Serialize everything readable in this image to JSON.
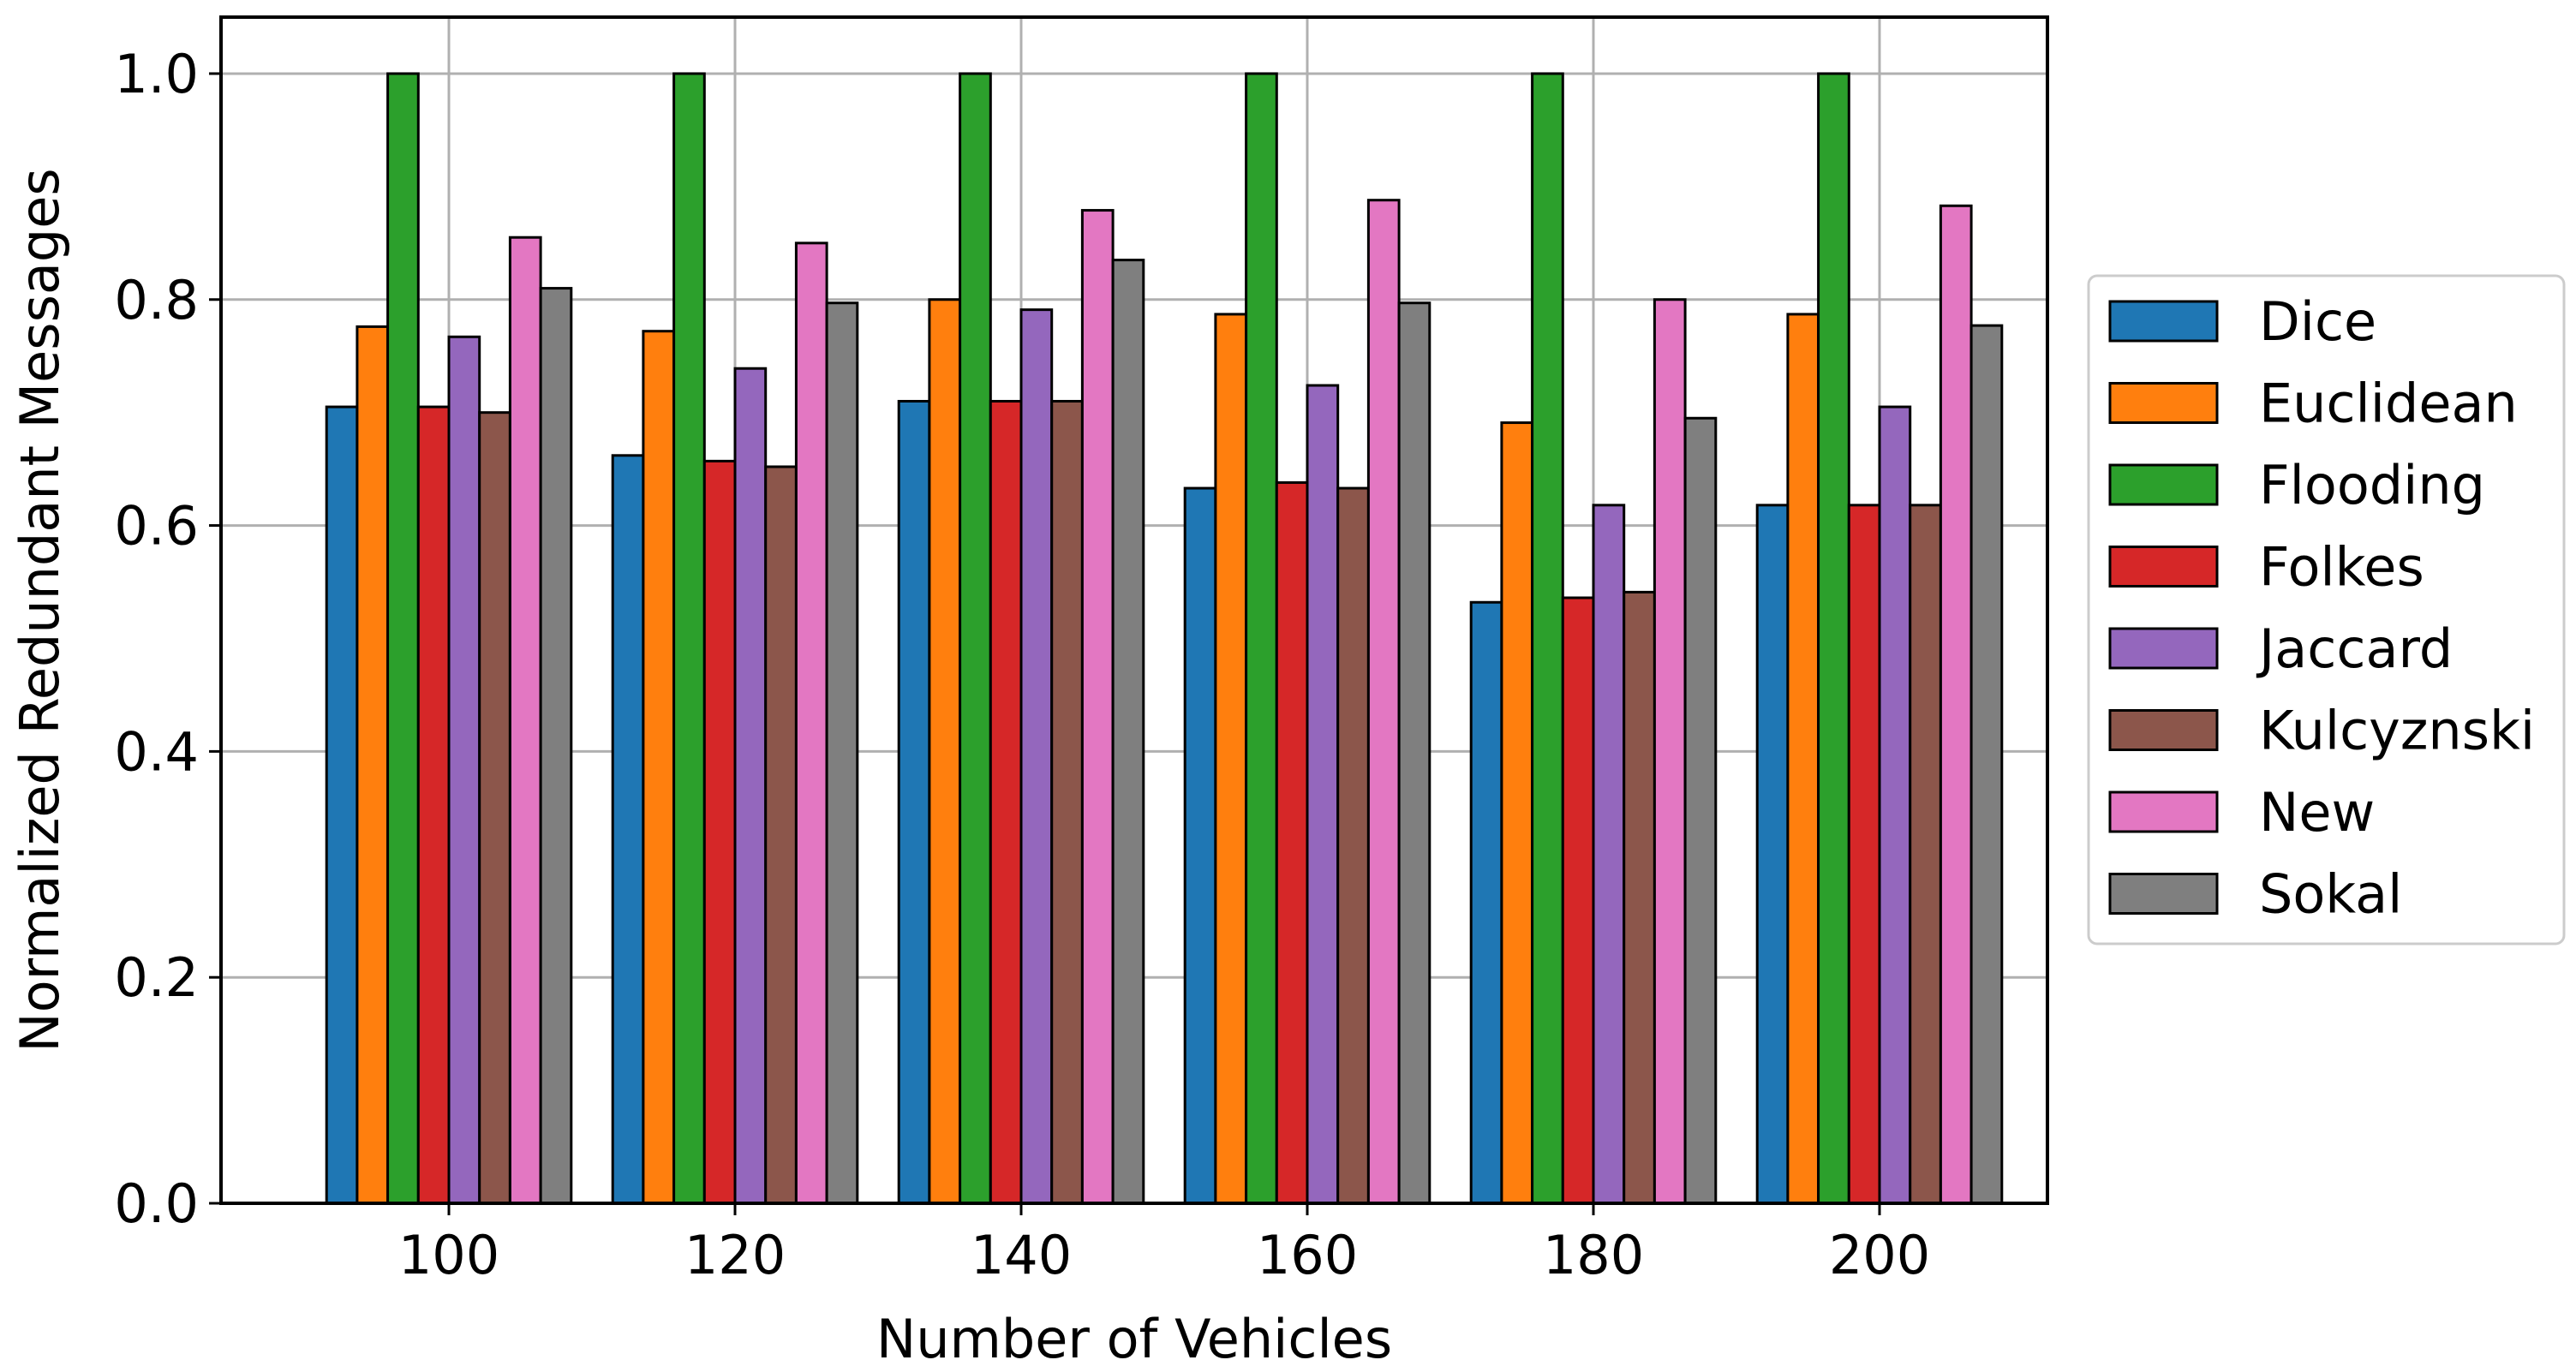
{
  "chart_data": {
    "type": "bar",
    "title": "",
    "xlabel": "Number of Vehicles",
    "ylabel": "Normalized Redundant Messages",
    "categories": [
      "100",
      "120",
      "140",
      "160",
      "180",
      "200"
    ],
    "ylim": [
      0.0,
      1.05
    ],
    "yticks": [
      "0.0",
      "0.2",
      "0.4",
      "0.6",
      "0.8",
      "1.0"
    ],
    "grid": true,
    "legend_position": "right",
    "series": [
      {
        "name": "Dice",
        "color": "#1f77b4",
        "values": [
          0.705,
          0.662,
          0.71,
          0.633,
          0.532,
          0.618
        ]
      },
      {
        "name": "Euclidean",
        "color": "#ff7f0e",
        "values": [
          0.776,
          0.772,
          0.8,
          0.787,
          0.691,
          0.787
        ]
      },
      {
        "name": "Flooding",
        "color": "#2ca02c",
        "values": [
          1.0,
          1.0,
          1.0,
          1.0,
          1.0,
          1.0
        ]
      },
      {
        "name": "Folkes",
        "color": "#d62728",
        "values": [
          0.705,
          0.657,
          0.71,
          0.638,
          0.536,
          0.618
        ]
      },
      {
        "name": "Jaccard",
        "color": "#9467bd",
        "values": [
          0.767,
          0.739,
          0.791,
          0.724,
          0.618,
          0.705
        ]
      },
      {
        "name": "Kulcyznski",
        "color": "#8c564b",
        "values": [
          0.7,
          0.652,
          0.71,
          0.633,
          0.541,
          0.618
        ]
      },
      {
        "name": "New",
        "color": "#e377c2",
        "values": [
          0.855,
          0.85,
          0.879,
          0.888,
          0.8,
          0.883
        ]
      },
      {
        "name": "Sokal",
        "color": "#7f7f7f",
        "values": [
          0.81,
          0.797,
          0.835,
          0.797,
          0.695,
          0.777
        ]
      }
    ]
  }
}
